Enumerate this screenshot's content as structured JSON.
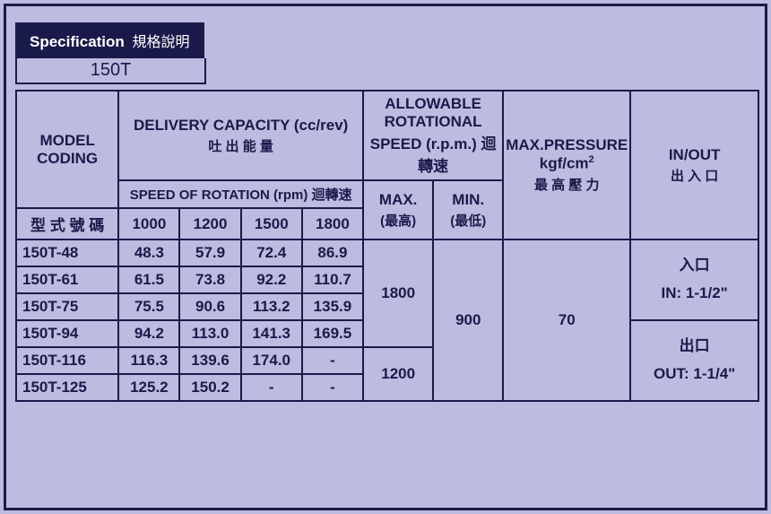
{
  "header": {
    "title_en": "Specification",
    "title_cn": "規格說明",
    "model": "150T"
  },
  "cols": {
    "model_en": "MODEL CODING",
    "model_cn": "型 式 號 碼",
    "delivery_en": "DELIVERY CAPACITY  (cc/rev)",
    "delivery_cn": "吐 出 能 量",
    "speed_en": "SPEED OF ROTATION (rpm)",
    "speed_cn": "迴轉速",
    "speeds": [
      "1000",
      "1200",
      "1500",
      "1800"
    ],
    "allow_en": "ALLOWABLE ROTATIONAL SPEED (r.p.m.)",
    "allow_cn": "迴轉速",
    "max_en": "MAX.",
    "max_cn": "(最高)",
    "min_en": "MIN.",
    "min_cn": "(最低)",
    "press_en": "MAX.PRESSURE",
    "press_unit": "kgf/cm",
    "press_cn": "最 高 壓 力",
    "inout_en": "IN/OUT",
    "inout_cn": "出 入 口"
  },
  "rows": [
    {
      "model": "150T-48",
      "v": [
        "48.3",
        "57.9",
        "72.4",
        "86.9"
      ]
    },
    {
      "model": "150T-61",
      "v": [
        "61.5",
        "73.8",
        "92.2",
        "110.7"
      ]
    },
    {
      "model": "150T-75",
      "v": [
        "75.5",
        "90.6",
        "113.2",
        "135.9"
      ]
    },
    {
      "model": "150T-94",
      "v": [
        "94.2",
        "113.0",
        "141.3",
        "169.5"
      ]
    },
    {
      "model": "150T-116",
      "v": [
        "116.3",
        "139.6",
        "174.0",
        "-"
      ]
    },
    {
      "model": "150T-125",
      "v": [
        "125.2",
        "150.2",
        "-",
        "-"
      ]
    }
  ],
  "allow_max": [
    "1800",
    "1200"
  ],
  "allow_min": "900",
  "pressure": "70",
  "inout": {
    "in_cn": "入口",
    "in_en": "IN:  1-1/2\"",
    "out_cn": "出口",
    "out_en": "OUT: 1-1/4\""
  }
}
